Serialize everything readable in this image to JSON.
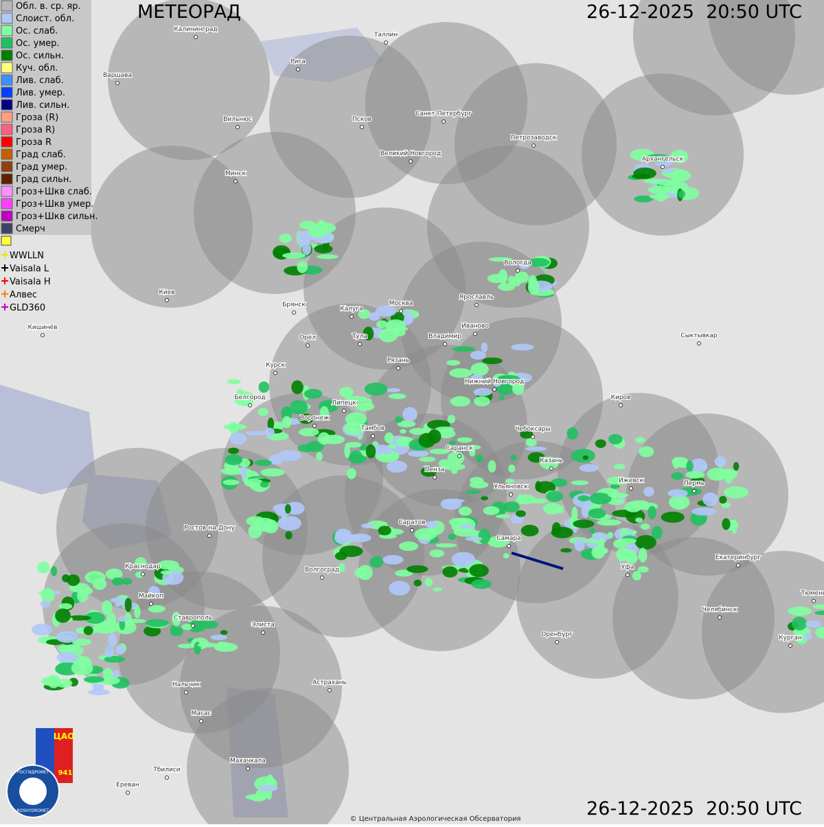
{
  "header": {
    "title": "МЕТЕОРАД",
    "timestamp_top": "26-12-2025  20:50 UTC",
    "timestamp_bottom": "26-12-2025  20:50 UTC"
  },
  "legend": {
    "items": [
      {
        "label": "Обл. в. ср. яр.",
        "color": "#b8b8b8"
      },
      {
        "label": "Слоист. обл.",
        "color": "#b0c8f8"
      },
      {
        "label": "Ос. слаб.",
        "color": "#80ffa0"
      },
      {
        "label": "Ос. умер.",
        "color": "#20c060"
      },
      {
        "label": "Ос. сильн.",
        "color": "#008000"
      },
      {
        "label": "Куч. обл.",
        "color": "#ffff80"
      },
      {
        "label": "Лив. слаб.",
        "color": "#4090ff"
      },
      {
        "label": "Лив. умер.",
        "color": "#0040ff"
      },
      {
        "label": "Лив. сильн.",
        "color": "#000080"
      },
      {
        "label": "Гроза (R)",
        "color": "#ffa080"
      },
      {
        "label": "Гроза R)",
        "color": "#ff6080"
      },
      {
        "label": "Гроза R",
        "color": "#ff0000"
      },
      {
        "label": "Град слаб.",
        "color": "#c06000"
      },
      {
        "label": "Град умер.",
        "color": "#904010"
      },
      {
        "label": "Град сильн.",
        "color": "#602000"
      },
      {
        "label": "Гроз+Шкв слаб.",
        "color": "#ff90ff"
      },
      {
        "label": "Гроз+Шкв умер.",
        "color": "#ff40ff"
      },
      {
        "label": "Гроз+Шкв сильн.",
        "color": "#c000c0"
      },
      {
        "label": "Смерч",
        "color": "#404060"
      }
    ]
  },
  "lightning_legend": {
    "items": [
      {
        "label": "WWLLN",
        "color": "#f0e000"
      },
      {
        "label": "Vaisala L",
        "color": "#000000"
      },
      {
        "label": "Vaisala H",
        "color": "#ff0000"
      },
      {
        "label": "Алвес",
        "color": "#ff8000"
      },
      {
        "label": "GLD360",
        "color": "#c000c0"
      }
    ]
  },
  "cities": [
    "Калининград",
    "Таллин",
    "Рига",
    "Варшава",
    "Санкт-Петербург",
    "Псков",
    "Вильнюс",
    "Петрозаводск",
    "Великий Новгород",
    "Архангельск",
    "Минск",
    "Вологда",
    "Киев",
    "Ярославль",
    "Брянск",
    "Калуга",
    "Москва",
    "Иваново",
    "Кишинёв",
    "Тула",
    "Орёл",
    "Владимир",
    "Сыктывкар",
    "Курск",
    "Рязань",
    "Нижний Новгород",
    "Белгород",
    "Киров",
    "Липецк",
    "Воронеж",
    "Тамбов",
    "Чебоксары",
    "Саранск",
    "Казань",
    "Пенза",
    "Ижевск",
    "Пермь",
    "Ульяновск",
    "Ростов-на-Дону",
    "Саратов",
    "Самара",
    "Екатеринбург",
    "Краснодар",
    "Волгоград",
    "Уфа",
    "Майкоп",
    "Челябинск",
    "Тюмень",
    "Ставрополь",
    "Элиста",
    "Оренбург",
    "Курган",
    "Астрахань",
    "Нальчик",
    "Магас",
    "Тбилиси",
    "Махачкала",
    "Ереван"
  ],
  "logo": {
    "text": "ЦАО",
    "number": "941",
    "agency": "РОСГИДРОМЕТ",
    "agency_en": "ROSHYDROMET"
  },
  "footer": {
    "copyright": "© Центральная Аэрологическая Обсерватория"
  }
}
